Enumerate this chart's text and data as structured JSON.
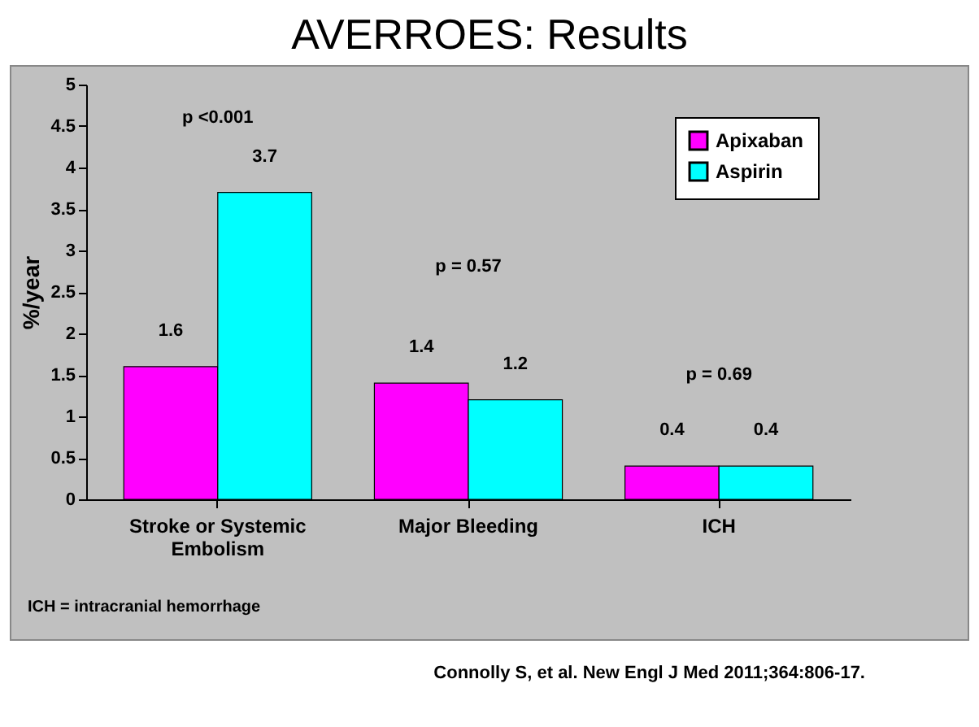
{
  "chart_data": {
    "type": "bar",
    "title": "AVERROES: Results",
    "ylabel": "%/year",
    "categories": [
      "Stroke or Systemic Embolism",
      "Major Bleeding",
      "ICH"
    ],
    "series": [
      {
        "name": "Apixaban",
        "color": "#ff00ff",
        "values": [
          1.6,
          1.4,
          0.4
        ]
      },
      {
        "name": "Aspirin",
        "color": "#00ffff",
        "values": [
          3.7,
          1.2,
          0.4
        ]
      }
    ],
    "ylim": [
      0,
      5
    ],
    "yticks": [
      0,
      0.5,
      1,
      1.5,
      2,
      2.5,
      3,
      3.5,
      4,
      4.5,
      5
    ],
    "data_labels": true,
    "legend": "top right",
    "grid": false,
    "annotations": [
      "p <0.001",
      "p = 0.57",
      "p = 0.69",
      "ICH = intracranial hemorrhage",
      "Connolly S, et al. New Engl J Med 2011;364:806-17."
    ]
  }
}
